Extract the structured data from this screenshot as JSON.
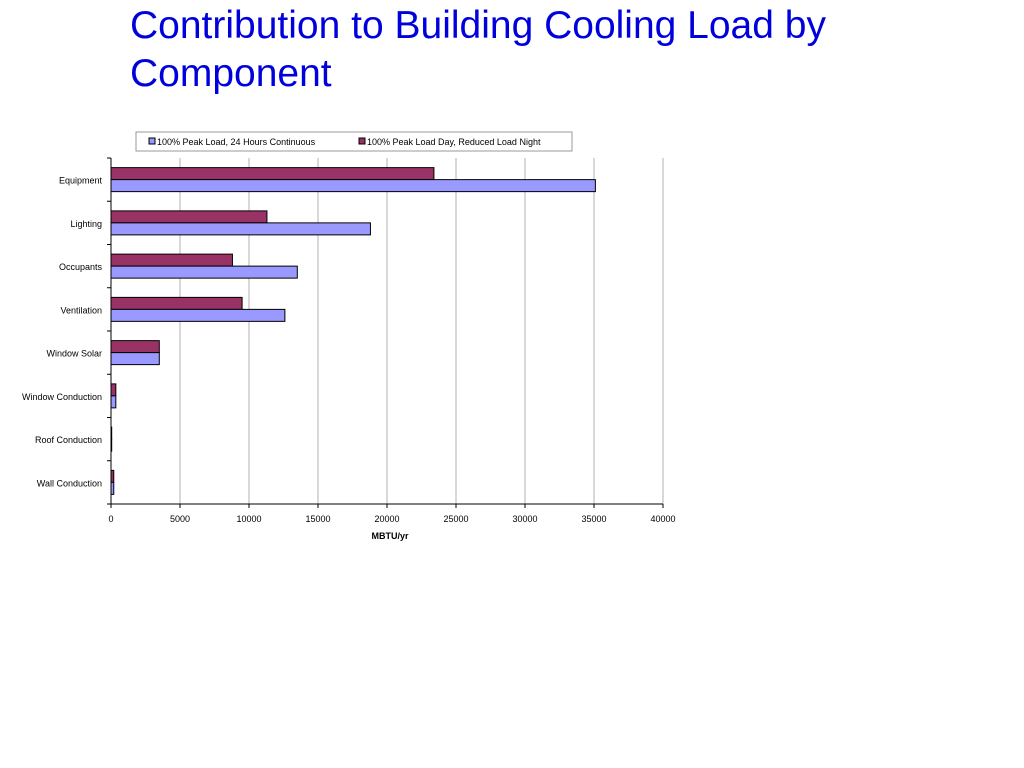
{
  "slide": {
    "title_line1": "Contribution to Building Cooling Load by",
    "title_line2": "Component"
  },
  "chart_data": {
    "type": "bar",
    "orientation": "horizontal",
    "title": "",
    "xlabel": "MBTU/yr",
    "ylabel": "",
    "xlim": [
      0,
      40000
    ],
    "xticks": [
      0,
      5000,
      10000,
      15000,
      20000,
      25000,
      30000,
      35000,
      40000
    ],
    "grid": true,
    "legend_position": "top",
    "categories": [
      "Equipment",
      "Lighting",
      "Occupants",
      "Ventilation",
      "Window Solar",
      "Window Conduction",
      "Roof Conduction",
      "Wall Conduction"
    ],
    "series": [
      {
        "name": "100% Peak Load, 24 Hours Continuous",
        "color": "#9999ff",
        "values": [
          35100,
          18800,
          13500,
          12600,
          3500,
          350,
          50,
          200
        ]
      },
      {
        "name": "100% Peak Load Day, Reduced Load Night",
        "color": "#993366",
        "values": [
          23400,
          11300,
          8800,
          9500,
          3500,
          350,
          50,
          200
        ]
      }
    ]
  }
}
